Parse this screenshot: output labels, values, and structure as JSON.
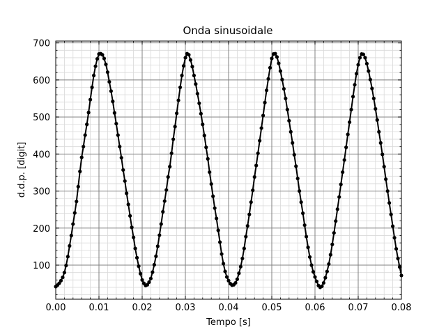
{
  "chart_data": {
    "type": "line",
    "title": "Onda sinusoidale",
    "xlabel": "Tempo [s]",
    "ylabel": "d.d.p. [digit]",
    "xlim": [
      0.0,
      0.08
    ],
    "ylim": [
      8,
      705
    ],
    "xticks": [
      0.0,
      0.01,
      0.02,
      0.03,
      0.04,
      0.05,
      0.06,
      0.07,
      0.08
    ],
    "xtick_labels": [
      "0.00",
      "0.01",
      "0.02",
      "0.03",
      "0.04",
      "0.05",
      "0.06",
      "0.07",
      "0.08"
    ],
    "yticks": [
      100,
      200,
      300,
      400,
      500,
      600,
      700
    ],
    "ytick_labels": [
      "100",
      "200",
      "300",
      "400",
      "500",
      "600",
      "700"
    ],
    "grid": "major and minor",
    "line_color": "#000000",
    "marker": "filled-circle",
    "series": [
      {
        "x": [
          0.0,
          0.0004,
          0.0008,
          0.0012,
          0.0016,
          0.002,
          0.0024,
          0.0028,
          0.0032,
          0.0036,
          0.004,
          0.0044,
          0.0048,
          0.0052,
          0.0056,
          0.006,
          0.0064,
          0.0068,
          0.0072,
          0.0076,
          0.008,
          0.0084,
          0.0088,
          0.0092,
          0.0096,
          0.01,
          0.0104,
          0.0108,
          0.0112,
          0.0116,
          0.012,
          0.0124,
          0.0128,
          0.0132,
          0.0136,
          0.014,
          0.0144,
          0.0148,
          0.0152,
          0.0156,
          0.016,
          0.0164,
          0.0168,
          0.0172,
          0.0176,
          0.018,
          0.0184,
          0.0188,
          0.0192,
          0.0196,
          0.02,
          0.0204,
          0.0208,
          0.0212,
          0.0216,
          0.022,
          0.0224,
          0.0228,
          0.0232,
          0.0236,
          0.024,
          0.0244,
          0.0248,
          0.0252,
          0.0256,
          0.026,
          0.0264,
          0.0268,
          0.0272,
          0.0276,
          0.028,
          0.0284,
          0.0288,
          0.0292,
          0.0296,
          0.03,
          0.0304,
          0.0308,
          0.0312,
          0.0316,
          0.032,
          0.0324,
          0.0328,
          0.0332,
          0.0336,
          0.034,
          0.0344,
          0.0348,
          0.0352,
          0.0356,
          0.036,
          0.0364,
          0.0368,
          0.0372,
          0.0376,
          0.038,
          0.0384,
          0.0388,
          0.0392,
          0.0396,
          0.04,
          0.0404,
          0.0408,
          0.0412,
          0.0416,
          0.042,
          0.0424,
          0.0428,
          0.0432,
          0.0436,
          0.044,
          0.0444,
          0.0448,
          0.0452,
          0.0456,
          0.046,
          0.0464,
          0.0468,
          0.0472,
          0.0476,
          0.048,
          0.0484,
          0.0488,
          0.0492,
          0.0496,
          0.05,
          0.0504,
          0.0508,
          0.0512,
          0.0516,
          0.052,
          0.0524,
          0.0528,
          0.0532,
          0.0536,
          0.054,
          0.0544,
          0.0548,
          0.0552,
          0.0556,
          0.056,
          0.0564,
          0.0568,
          0.0572,
          0.0576,
          0.058,
          0.0584,
          0.0588,
          0.0592,
          0.0596,
          0.06,
          0.0604,
          0.0608,
          0.0612,
          0.0616,
          0.062,
          0.0624,
          0.0628,
          0.0632,
          0.0636,
          0.064,
          0.0644,
          0.0648,
          0.0652,
          0.0656,
          0.066,
          0.0664,
          0.0668,
          0.0672,
          0.0676,
          0.068,
          0.0684,
          0.0688,
          0.0692,
          0.0696,
          0.07,
          0.0704,
          0.0708,
          0.0712,
          0.0716,
          0.072,
          0.0724,
          0.0728,
          0.0732,
          0.0736,
          0.074,
          0.0744,
          0.0748,
          0.0752,
          0.0756,
          0.076,
          0.0764,
          0.0768,
          0.0772,
          0.0776,
          0.078,
          0.0784,
          0.0788,
          0.0792,
          0.0796,
          0.08
        ],
        "y": [
          42,
          46,
          51,
          58,
          67,
          80,
          99,
          123,
          152,
          180,
          211,
          241,
          272,
          312,
          353,
          391,
          420,
          451,
          480,
          512,
          547,
          580,
          612,
          637,
          657,
          670,
          671,
          668,
          658,
          642,
          621,
          595,
          570,
          542,
          511,
          482,
          451,
          420,
          390,
          357,
          327,
          294,
          264,
          233,
          202,
          175,
          145,
          120,
          97,
          77,
          60,
          51,
          45,
          47,
          54,
          64,
          81,
          101,
          124,
          151,
          181,
          211,
          244,
          273,
          303,
          338,
          366,
          402,
          440,
          474,
          510,
          545,
          580,
          612,
          638,
          660,
          671,
          668,
          654,
          636,
          612,
          589,
          563,
          537,
          509,
          480,
          450,
          418,
          387,
          351,
          319,
          286,
          254,
          226,
          194,
          162,
          130,
          104,
          83,
          68,
          58,
          50,
          46,
          47,
          52,
          62,
          78,
          96,
          118,
          145,
          177,
          206,
          237,
          270,
          302,
          338,
          369,
          402,
          436,
          470,
          504,
          539,
          572,
          603,
          633,
          658,
          670,
          671,
          662,
          645,
          624,
          601,
          576,
          550,
          520,
          490,
          460,
          430,
          398,
          367,
          334,
          300,
          270,
          240,
          208,
          177,
          148,
          122,
          100,
          82,
          68,
          56,
          45,
          40,
          43,
          52,
          66,
          83,
          103,
          128,
          156,
          187,
          219,
          251,
          284,
          318,
          351,
          384,
          418,
          453,
          486,
          520,
          555,
          587,
          617,
          641,
          660,
          670,
          669,
          660,
          644,
          624,
          601,
          577,
          550,
          522,
          492,
          460,
          430,
          399,
          366,
          332,
          300,
          268,
          237,
          205,
          174,
          144,
          118,
          95,
          72
        ]
      }
    ]
  }
}
